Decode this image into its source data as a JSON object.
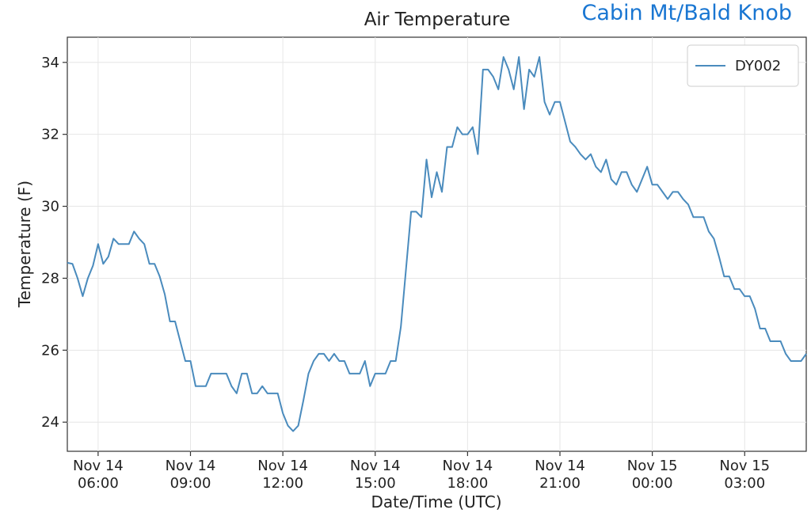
{
  "chart_data": {
    "type": "line",
    "title": "Air Temperature",
    "annotation": "Cabin Mt/Bald Knob",
    "x_label": "Date/Time (UTC)",
    "y_label": "Temperature (F)",
    "xlim": [
      "Nov 14 05:00",
      "Nov 15 05:00"
    ],
    "xticks": [
      "Nov 14 06:00",
      "Nov 14 09:00",
      "Nov 14 12:00",
      "Nov 14 15:00",
      "Nov 14 18:00",
      "Nov 14 21:00",
      "Nov 15 00:00",
      "Nov 15 03:00"
    ],
    "ylim": [
      23.19,
      34.7
    ],
    "yticks": [
      24,
      26,
      28,
      30,
      32,
      34
    ],
    "grid": true,
    "legend": "upper right",
    "x": [
      "Nov 14 05:00",
      "Nov 14 05:10",
      "Nov 14 05:20",
      "Nov 14 05:30",
      "Nov 14 05:40",
      "Nov 14 05:50",
      "Nov 14 06:00",
      "Nov 14 06:10",
      "Nov 14 06:20",
      "Nov 14 06:30",
      "Nov 14 06:40",
      "Nov 14 06:50",
      "Nov 14 07:00",
      "Nov 14 07:10",
      "Nov 14 07:20",
      "Nov 14 07:30",
      "Nov 14 07:40",
      "Nov 14 07:50",
      "Nov 14 08:00",
      "Nov 14 08:10",
      "Nov 14 08:20",
      "Nov 14 08:30",
      "Nov 14 08:40",
      "Nov 14 08:50",
      "Nov 14 09:00",
      "Nov 14 09:10",
      "Nov 14 09:20",
      "Nov 14 09:30",
      "Nov 14 09:40",
      "Nov 14 09:50",
      "Nov 14 10:00",
      "Nov 14 10:10",
      "Nov 14 10:20",
      "Nov 14 10:30",
      "Nov 14 10:40",
      "Nov 14 10:50",
      "Nov 14 11:00",
      "Nov 14 11:10",
      "Nov 14 11:20",
      "Nov 14 11:30",
      "Nov 14 11:40",
      "Nov 14 11:50",
      "Nov 14 12:00",
      "Nov 14 12:10",
      "Nov 14 12:20",
      "Nov 14 12:30",
      "Nov 14 12:40",
      "Nov 14 12:50",
      "Nov 14 13:00",
      "Nov 14 13:10",
      "Nov 14 13:20",
      "Nov 14 13:30",
      "Nov 14 13:40",
      "Nov 14 13:50",
      "Nov 14 14:00",
      "Nov 14 14:10",
      "Nov 14 14:20",
      "Nov 14 14:30",
      "Nov 14 14:40",
      "Nov 14 14:50",
      "Nov 14 15:00",
      "Nov 14 15:10",
      "Nov 14 15:20",
      "Nov 14 15:30",
      "Nov 14 15:40",
      "Nov 14 15:50",
      "Nov 14 16:00",
      "Nov 14 16:10",
      "Nov 14 16:20",
      "Nov 14 16:30",
      "Nov 14 16:40",
      "Nov 14 16:50",
      "Nov 14 17:00",
      "Nov 14 17:10",
      "Nov 14 17:20",
      "Nov 14 17:30",
      "Nov 14 17:40",
      "Nov 14 17:50",
      "Nov 14 18:00",
      "Nov 14 18:10",
      "Nov 14 18:20",
      "Nov 14 18:30",
      "Nov 14 18:40",
      "Nov 14 18:50",
      "Nov 14 19:00",
      "Nov 14 19:10",
      "Nov 14 19:20",
      "Nov 14 19:30",
      "Nov 14 19:40",
      "Nov 14 19:50",
      "Nov 14 20:00",
      "Nov 14 20:10",
      "Nov 14 20:20",
      "Nov 14 20:30",
      "Nov 14 20:40",
      "Nov 14 20:50",
      "Nov 14 21:00",
      "Nov 14 21:10",
      "Nov 14 21:20",
      "Nov 14 21:30",
      "Nov 14 21:40",
      "Nov 14 21:50",
      "Nov 14 22:00",
      "Nov 14 22:10",
      "Nov 14 22:20",
      "Nov 14 22:30",
      "Nov 14 22:40",
      "Nov 14 22:50",
      "Nov 14 23:00",
      "Nov 14 23:10",
      "Nov 14 23:20",
      "Nov 14 23:30",
      "Nov 14 23:40",
      "Nov 14 23:50",
      "Nov 15 00:00",
      "Nov 15 00:10",
      "Nov 15 00:20",
      "Nov 15 00:30",
      "Nov 15 00:40",
      "Nov 15 00:50",
      "Nov 15 01:00",
      "Nov 15 01:10",
      "Nov 15 01:20",
      "Nov 15 01:30",
      "Nov 15 01:40",
      "Nov 15 01:50",
      "Nov 15 02:00",
      "Nov 15 02:10",
      "Nov 15 02:20",
      "Nov 15 02:30",
      "Nov 15 02:40",
      "Nov 15 02:50",
      "Nov 15 03:00",
      "Nov 15 03:10",
      "Nov 15 03:20",
      "Nov 15 03:30",
      "Nov 15 03:40",
      "Nov 15 03:50",
      "Nov 15 04:00",
      "Nov 15 04:10",
      "Nov 15 04:20",
      "Nov 15 04:30",
      "Nov 15 04:40",
      "Nov 15 04:50",
      "Nov 15 05:00"
    ],
    "series": [
      {
        "name": "DY002",
        "color": "#4a8bbd",
        "values": [
          28.43,
          28.4,
          28.0,
          27.5,
          28.0,
          28.35,
          28.95,
          28.4,
          28.6,
          29.1,
          28.95,
          28.95,
          28.95,
          29.3,
          29.1,
          28.95,
          28.4,
          28.4,
          28.05,
          27.55,
          26.8,
          26.8,
          26.25,
          25.7,
          25.7,
          25.0,
          25.0,
          25.0,
          25.35,
          25.35,
          25.35,
          25.35,
          25.0,
          24.8,
          25.35,
          25.35,
          24.8,
          24.8,
          25.0,
          24.8,
          24.8,
          24.8,
          24.25,
          23.9,
          23.75,
          23.9,
          24.6,
          25.35,
          25.7,
          25.9,
          25.9,
          25.7,
          25.9,
          25.7,
          25.7,
          25.35,
          25.35,
          25.35,
          25.7,
          25.0,
          25.35,
          25.35,
          25.35,
          25.7,
          25.7,
          26.65,
          28.25,
          29.85,
          29.85,
          29.7,
          31.3,
          30.25,
          30.95,
          30.4,
          31.65,
          31.65,
          32.2,
          32.0,
          32.0,
          32.2,
          31.45,
          33.8,
          33.8,
          33.6,
          33.25,
          34.15,
          33.8,
          33.25,
          34.15,
          32.7,
          33.8,
          33.6,
          34.15,
          32.9,
          32.55,
          32.9,
          32.9,
          32.35,
          31.8,
          31.65,
          31.45,
          31.3,
          31.45,
          31.1,
          30.95,
          31.3,
          30.75,
          30.6,
          30.95,
          30.95,
          30.6,
          30.4,
          30.75,
          31.1,
          30.6,
          30.6,
          30.4,
          30.2,
          30.4,
          30.4,
          30.2,
          30.05,
          29.7,
          29.7,
          29.7,
          29.3,
          29.1,
          28.6,
          28.05,
          28.05,
          27.7,
          27.7,
          27.5,
          27.5,
          27.15,
          26.6,
          26.6,
          26.25,
          26.25,
          26.25,
          25.9,
          25.7,
          25.7,
          25.7,
          25.9
        ]
      }
    ]
  }
}
